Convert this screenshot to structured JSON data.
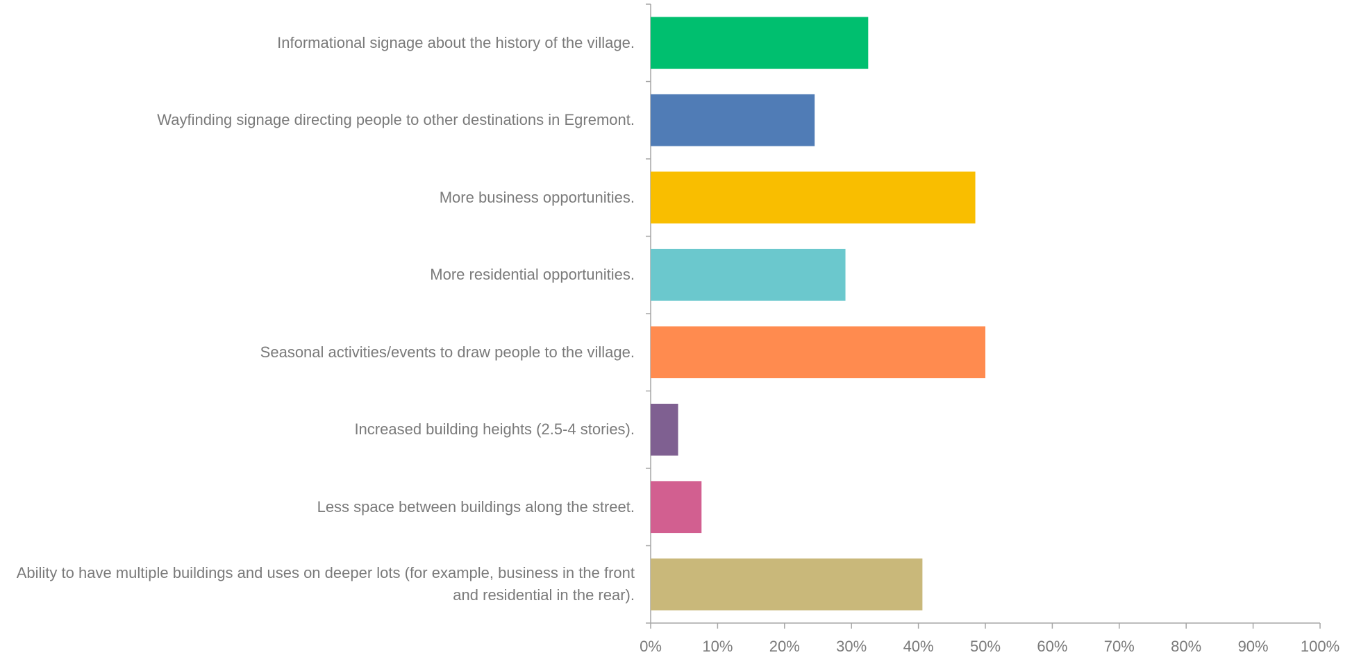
{
  "chart_data": {
    "type": "bar",
    "orientation": "horizontal",
    "categories": [
      "Informational signage about the history of the village.",
      "Wayfinding signage directing people to other destinations in Egremont.",
      "More business opportunities.",
      "More residential opportunities.",
      "Seasonal activities/events to draw people to the village.",
      "Increased building heights (2.5-4 stories).",
      "Less space between buildings along the street.",
      "Ability to have multiple buildings and uses on deeper lots (for example, business in the front and residential in the rear)."
    ],
    "values": [
      32.5,
      24.5,
      48.5,
      29.1,
      50,
      4.1,
      7.6,
      40.6
    ],
    "colors": [
      "#00bf6f",
      "#507cb6",
      "#f9be00",
      "#6bc8cd",
      "#ff8b4f",
      "#7f6091",
      "#d25f90",
      "#c9b87a"
    ],
    "xlim": [
      0,
      100
    ],
    "xticks": [
      {
        "value": 0,
        "label": "0%"
      },
      {
        "value": 10,
        "label": "10%"
      },
      {
        "value": 20,
        "label": "20%"
      },
      {
        "value": 30,
        "label": "30%"
      },
      {
        "value": 40,
        "label": "40%"
      },
      {
        "value": 50,
        "label": "50%"
      },
      {
        "value": 60,
        "label": "60%"
      },
      {
        "value": 70,
        "label": "70%"
      },
      {
        "value": 80,
        "label": "80%"
      },
      {
        "value": 90,
        "label": "90%"
      },
      {
        "value": 100,
        "label": "100%"
      }
    ],
    "grid": false
  }
}
